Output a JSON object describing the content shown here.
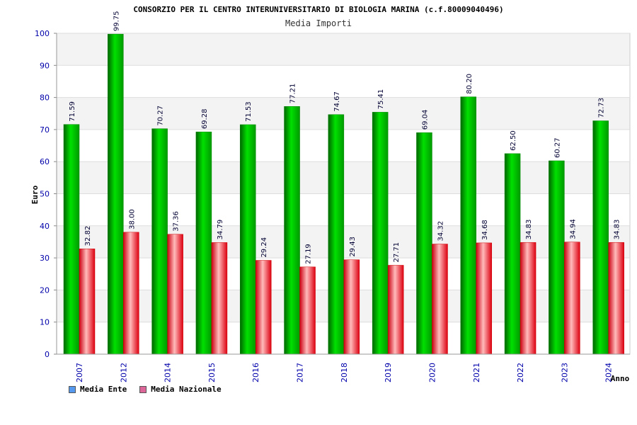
{
  "chart_data": {
    "type": "bar",
    "title": "CONSORZIO PER IL CENTRO INTERUNIVERSITARIO DI BIOLOGIA MARINA (c.f.80009040496)",
    "subtitle": "Media Importi",
    "xlabel": "Anno",
    "ylabel": "Euro",
    "ylim": [
      0,
      100
    ],
    "yticks": [
      0,
      10,
      20,
      30,
      40,
      50,
      60,
      70,
      80,
      90,
      100
    ],
    "categories": [
      "2007",
      "2012",
      "2014",
      "2015",
      "2016",
      "2017",
      "2018",
      "2019",
      "2020",
      "2021",
      "2022",
      "2023",
      "2024"
    ],
    "series": [
      {
        "name": "Media Ente",
        "values": [
          71.59,
          99.75,
          70.27,
          69.28,
          71.53,
          77.21,
          74.67,
          75.41,
          69.04,
          80.2,
          62.5,
          60.27,
          72.73
        ],
        "labels": [
          "71.59",
          "99.75",
          "70.27",
          "69.28",
          "71.53",
          "77.21",
          "74.67",
          "75.41",
          "69.04",
          "80.20",
          "62.50",
          "60.27",
          "72.73"
        ],
        "color": "#00cc00",
        "legend_color": "#5599ee"
      },
      {
        "name": "Media Nazionale",
        "values": [
          32.82,
          38.0,
          37.36,
          34.79,
          29.24,
          27.19,
          29.43,
          27.71,
          34.32,
          34.68,
          34.83,
          34.94,
          34.83
        ],
        "labels": [
          "32.82",
          "38.00",
          "37.36",
          "34.79",
          "29.24",
          "27.19",
          "29.43",
          "27.71",
          "34.32",
          "34.68",
          "34.83",
          "34.94",
          "34.83"
        ],
        "color": "#ee1122",
        "legend_color": "#dd6699"
      }
    ],
    "grid": true,
    "legend_position": "bottom-left"
  }
}
